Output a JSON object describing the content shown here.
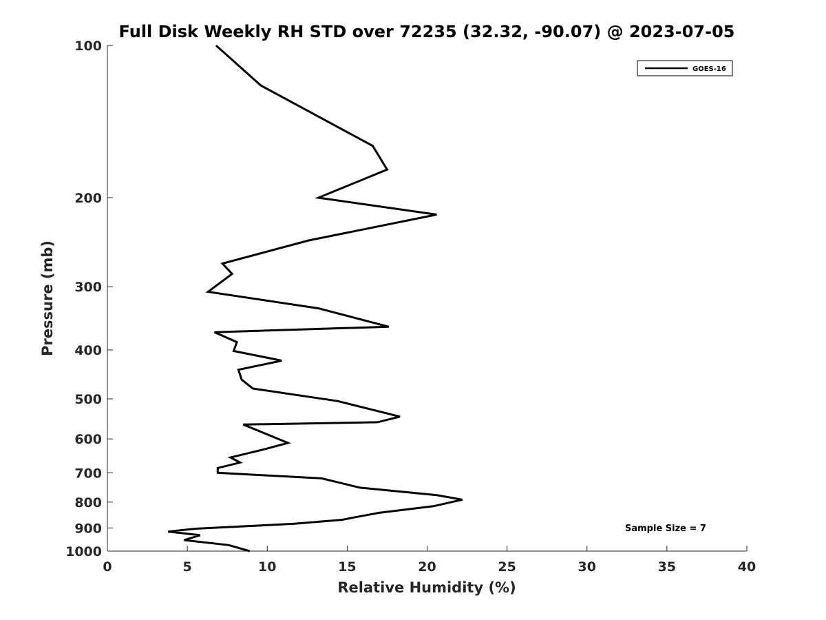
{
  "chart_data": {
    "type": "line",
    "title": "Full Disk Weekly RH STD over 72235 (32.32, -90.07) @ 2023-07-05",
    "xlabel": "Relative Humidity (%)",
    "ylabel": "Pressure (mb)",
    "xlim": [
      0,
      40
    ],
    "ylim": [
      1000,
      100
    ],
    "yscale": "log",
    "y_reversed": true,
    "xticks": [
      0,
      5,
      10,
      15,
      20,
      25,
      30,
      35,
      40
    ],
    "yticks": [
      100,
      200,
      300,
      400,
      500,
      600,
      700,
      800,
      900,
      1000
    ],
    "grid": false,
    "legend_position": "top-right",
    "annotation": "Sample Size = 7",
    "line_color": "#000000",
    "series": [
      {
        "name": "GOES-16",
        "x": [
          6.8,
          9.6,
          16.6,
          17.5,
          13.2,
          20.6,
          12.6,
          7.2,
          7.8,
          6.3,
          13.2,
          17.6,
          6.7,
          8.1,
          7.9,
          10.9,
          8.2,
          8.4,
          9.1,
          14.4,
          18.3,
          16.9,
          8.5,
          11.3,
          9.9,
          7.7,
          8.3,
          6.9,
          6.9,
          13.4,
          15.8,
          20.6,
          22.2,
          20.4,
          17.0,
          15.5,
          14.7,
          11.7,
          5.5,
          3.8,
          5.8,
          4.8,
          7.6,
          8.9
        ],
        "y": [
          100,
          120,
          158,
          176,
          200,
          216,
          243,
          270,
          283,
          307,
          331,
          360,
          369,
          386,
          402,
          420,
          438,
          458,
          477,
          505,
          542,
          556,
          562,
          611,
          628,
          653,
          668,
          685,
          700,
          718,
          749,
          775,
          791,
          815,
          840,
          857,
          867,
          883,
          903,
          915,
          930,
          951,
          973,
          1000
        ]
      }
    ]
  }
}
